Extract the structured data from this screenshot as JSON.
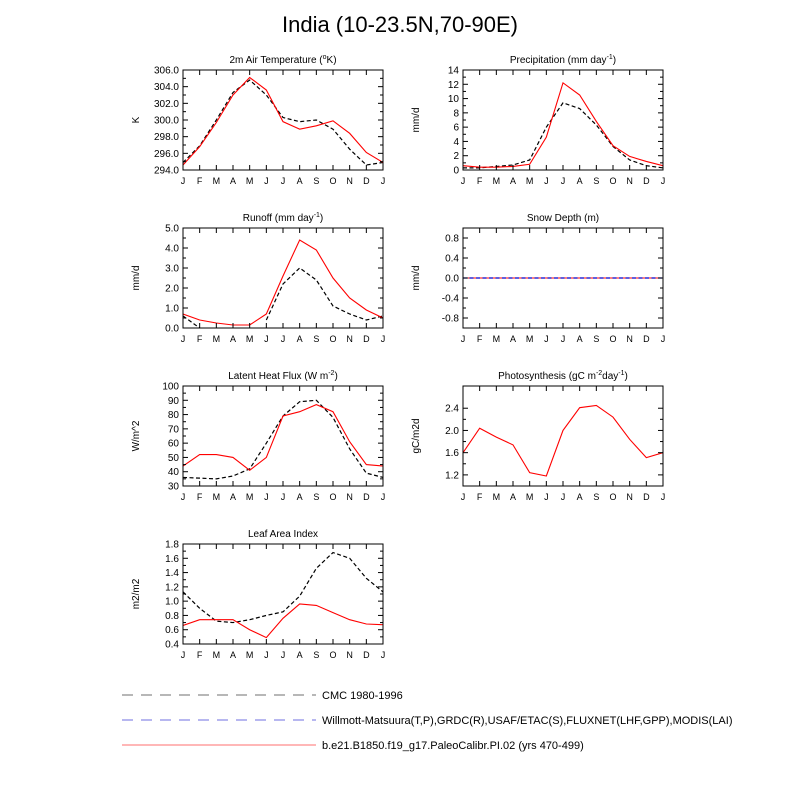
{
  "figure": {
    "title": "India (10-23.5N,70-90E)"
  },
  "months": [
    "J",
    "F",
    "M",
    "A",
    "M",
    "J",
    "J",
    "A",
    "S",
    "O",
    "N",
    "D",
    "J"
  ],
  "legend": {
    "items": [
      {
        "label": "CMC 1980-1996",
        "color": "#000000",
        "style": "dashed"
      },
      {
        "label": "Willmott-Matsuura(T,P),GRDC(R),USAF/ETAC(S),FLUXNET(LHF,GPP),MODIS(LAI)",
        "color": "#0000cc",
        "style": "dashed"
      },
      {
        "label": "b.e21.B1850.f19_g17.PaleoCalibr.PI.02 (yrs 470-499)",
        "color": "#ff0000",
        "style": "solid"
      }
    ]
  },
  "chart_data": [
    {
      "type": "line",
      "title": "2m Air Temperature (°K)",
      "title_parts": [
        [
          "2m Air Temperature (",
          ""
        ],
        [
          "o",
          "sup"
        ],
        [
          "K)",
          ""
        ]
      ],
      "ylabel": "K",
      "ylim": [
        294,
        306
      ],
      "yticks": [
        294,
        296,
        298,
        300,
        302,
        304,
        306
      ],
      "tick_decimals": 1,
      "series": [
        {
          "values": [
            294.9,
            296.9,
            300.0,
            303.3,
            304.8,
            303.0,
            300.3,
            299.8,
            300.0,
            298.9,
            296.5,
            294.6,
            294.9
          ],
          "color": "#000000",
          "dash": "dashed"
        },
        {
          "values": [
            294.6,
            296.8,
            299.7,
            303.0,
            305.1,
            303.6,
            299.8,
            298.9,
            299.3,
            299.9,
            298.4,
            296.1,
            294.9
          ],
          "color": "#ff0000",
          "dash": "solid"
        }
      ]
    },
    {
      "type": "line",
      "title": "Precipitation (mm day-1)",
      "title_parts": [
        [
          "Precipitation (mm day",
          ""
        ],
        [
          "-1",
          "sup"
        ],
        [
          ")",
          ""
        ]
      ],
      "ylabel": "mm/d",
      "ylim": [
        0,
        14
      ],
      "yticks": [
        0,
        2,
        4,
        6,
        8,
        10,
        12,
        14
      ],
      "tick_decimals": 0,
      "series": [
        {
          "values": [
            0.3,
            0.3,
            0.5,
            0.7,
            1.4,
            6.0,
            9.4,
            8.6,
            6.3,
            3.3,
            1.4,
            0.6,
            0.3
          ],
          "color": "#000000",
          "dash": "dashed"
        },
        {
          "values": [
            0.6,
            0.4,
            0.4,
            0.5,
            0.8,
            4.6,
            12.2,
            10.5,
            6.8,
            3.4,
            1.9,
            1.2,
            0.6
          ],
          "color": "#ff0000",
          "dash": "solid"
        }
      ]
    },
    {
      "type": "line",
      "title": "Runoff (mm day-1)",
      "title_parts": [
        [
          "Runoff (mm day",
          ""
        ],
        [
          "-1",
          "sup"
        ],
        [
          ")",
          ""
        ]
      ],
      "ylabel": "mm/d",
      "ylim": [
        0,
        5
      ],
      "yticks": [
        0,
        1,
        2,
        3,
        4,
        5
      ],
      "tick_decimals": 1,
      "series": [
        {
          "values": [
            0.6,
            0.0,
            null,
            null,
            null,
            0.4,
            2.2,
            3.0,
            2.4,
            1.1,
            0.7,
            0.4,
            0.6
          ],
          "color": "#000000",
          "dash": "dashed"
        },
        {
          "values": [
            0.7,
            0.4,
            0.25,
            0.15,
            0.15,
            0.7,
            2.6,
            4.4,
            3.9,
            2.5,
            1.5,
            0.9,
            0.5
          ],
          "color": "#ff0000",
          "dash": "solid"
        }
      ]
    },
    {
      "type": "line",
      "title": "Snow Depth (m)",
      "title_parts": [
        [
          "Snow Depth (m)",
          ""
        ]
      ],
      "ylabel": "mm/d",
      "ylim": [
        -1,
        1
      ],
      "yticks": [
        -0.8,
        -0.4,
        0,
        0.4,
        0.8
      ],
      "tick_decimals": 1,
      "series": [
        {
          "values": [
            0,
            0,
            0,
            0,
            0,
            0,
            0,
            0,
            0,
            0,
            0,
            0,
            0
          ],
          "color": "#ff0000",
          "dash": "solid"
        },
        {
          "values": [
            0,
            0,
            0,
            0,
            0,
            0,
            0,
            0,
            0,
            0,
            0,
            0,
            0
          ],
          "color": "#0000cc",
          "dash": "dashed"
        }
      ]
    },
    {
      "type": "line",
      "title": "Latent Heat Flux (W m-2)",
      "title_parts": [
        [
          "Latent Heat Flux (W m",
          ""
        ],
        [
          "-2",
          "sup"
        ],
        [
          ")",
          ""
        ]
      ],
      "ylabel": "W/m^2",
      "ylim": [
        30,
        100
      ],
      "yticks": [
        30,
        40,
        50,
        60,
        70,
        80,
        90,
        100
      ],
      "tick_decimals": 0,
      "series": [
        {
          "values": [
            36,
            35.5,
            35,
            37,
            42,
            60,
            79,
            89,
            90,
            78,
            56,
            39,
            36
          ],
          "color": "#000000",
          "dash": "dashed"
        },
        {
          "values": [
            44,
            52,
            52,
            50,
            41,
            50,
            79,
            82,
            87,
            82,
            61,
            45,
            44
          ],
          "color": "#ff0000",
          "dash": "solid"
        }
      ]
    },
    {
      "type": "line",
      "title": "Photosynthesis (gC m-2day-1)",
      "title_parts": [
        [
          "Photosynthesis (gC m",
          ""
        ],
        [
          "-2",
          "sup"
        ],
        [
          "day",
          ""
        ],
        [
          "-1",
          "sup"
        ],
        [
          ")",
          ""
        ]
      ],
      "ylabel": "gC/m2d",
      "ylim": [
        1.0,
        2.8
      ],
      "yticks": [
        1.2,
        1.6,
        2.0,
        2.4
      ],
      "tick_decimals": 1,
      "series": [
        {
          "values": [
            1.6,
            2.04,
            1.88,
            1.74,
            1.24,
            1.18,
            2.0,
            2.41,
            2.45,
            2.24,
            1.84,
            1.51,
            1.6
          ],
          "color": "#ff0000",
          "dash": "solid"
        }
      ]
    },
    {
      "type": "line",
      "title": "Leaf Area Index",
      "title_parts": [
        [
          "Leaf Area Index",
          ""
        ]
      ],
      "ylabel": "m2/m2",
      "ylim": [
        0.4,
        1.8
      ],
      "yticks": [
        0.4,
        0.6,
        0.8,
        1.0,
        1.2,
        1.4,
        1.6,
        1.8
      ],
      "tick_decimals": 1,
      "series": [
        {
          "values": [
            1.13,
            0.9,
            0.72,
            0.7,
            0.74,
            0.8,
            0.85,
            1.07,
            1.46,
            1.68,
            1.6,
            1.32,
            1.13
          ],
          "color": "#000000",
          "dash": "dashed"
        },
        {
          "values": [
            0.66,
            0.74,
            0.74,
            0.74,
            0.6,
            0.49,
            0.76,
            0.96,
            0.94,
            0.84,
            0.74,
            0.68,
            0.67
          ],
          "color": "#ff0000",
          "dash": "solid"
        }
      ]
    }
  ]
}
